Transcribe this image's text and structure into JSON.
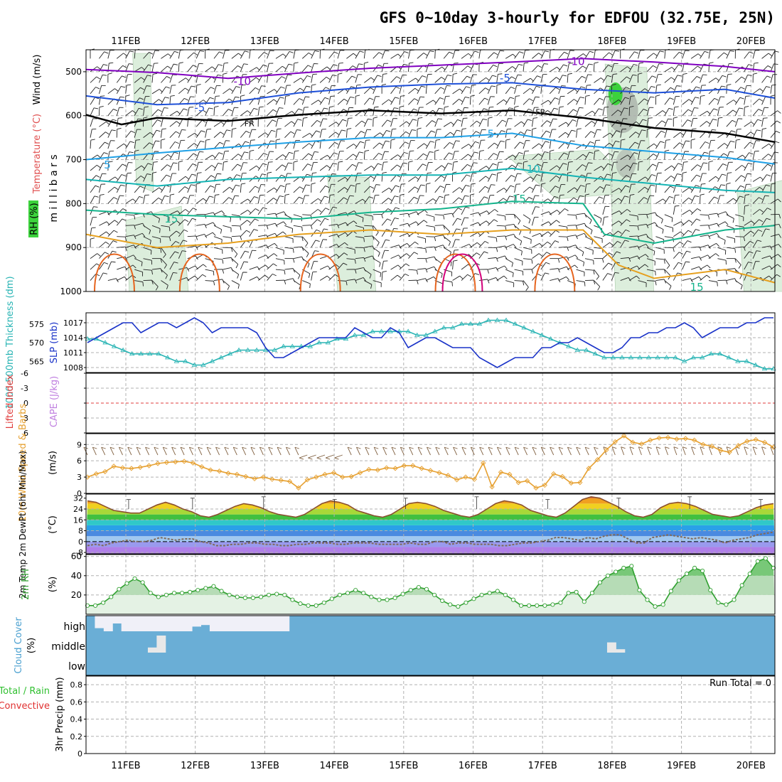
{
  "title": "GFS 0~10day 3-hourly for EDFOU (32.75E, 25N)",
  "dates": [
    "11FEB",
    "12FEB",
    "13FEB",
    "14FEB",
    "15FEB",
    "16FEB",
    "17FEB",
    "18FEB",
    "19FEB",
    "20FEB"
  ],
  "colors": {
    "wind_barb": "#222222",
    "isotherm_cold": "#8000c0",
    "isotherm_minus5": "#1e50d8",
    "freezing": "#000000",
    "isotherm_5": "#1ea0e6",
    "isotherm_10": "#14b4b4",
    "isotherm_15": "#14b48c",
    "isotherm_20": "#e6a01e",
    "isotherm_25": "#e6641e",
    "isotherm_30": "#d2007a",
    "rh_fill": "#d6ecd6",
    "rh_dark": "#808080",
    "rh_green": "#3cd23c",
    "slp": "#1932c8",
    "thickness": "#28b4b4",
    "lifted_index": "#e03c3c",
    "cape": "#c080e0",
    "wind_speed": "#e6a030",
    "wind_barbs_10m": "#806040",
    "temp_fill": "#f07828",
    "dewpoint": "#806a5a",
    "rh_line": "#30a030",
    "cloud_clear": "#6aaed6",
    "cloud_cover": "#f0f0f8"
  },
  "panels": {
    "upper": {
      "axis_title": "m i l l i b a r s",
      "legend_wind": "Wind (m/s)",
      "legend_temp": "Temperature (°C)",
      "legend_rh": "RH (%)"
    },
    "slp": {
      "axis_left": "1000-500mb Thickness (dm)",
      "axis_right": "SLP (mb)"
    },
    "stability": {
      "axis_left": "Lifted Index",
      "axis_right": "CAPE (J/kg)"
    },
    "wind10": {
      "axis_left": "10m Wind Speed & Barbs",
      "units": "(m/s)"
    },
    "temp2m": {
      "axis_left": "2m Temp 2m DewPt (6hr Min/Max)",
      "units": "(°C)"
    },
    "rh2m": {
      "axis_left": "2m RH",
      "units": "(%)"
    },
    "cloud": {
      "axis_left": "Cloud Cover",
      "units": "(%)",
      "levels": [
        "high",
        "middle",
        "low"
      ]
    },
    "precip": {
      "axis_left_a": "Total / Rain",
      "axis_left_b": "Convective",
      "axis_right": "3hr Precip (mm)",
      "run_total": "Run Total = 0"
    }
  },
  "chart_data": [
    {
      "type": "heatmap",
      "name": "upper_air",
      "x_axis": "date (3-hourly)",
      "y_axis": "pressure (mb)",
      "ylim": [
        450,
        1000
      ],
      "yticks": [
        500,
        600,
        700,
        800,
        900,
        1000
      ],
      "ytick_labels": [
        "500",
        "600",
        "700",
        "800",
        "900",
        "1000"
      ],
      "contour_labels": [
        {
          "text": "-10",
          "t": 6.9,
          "p": 477
        },
        {
          "text": "-10",
          "t": 2.2,
          "p": 522
        },
        {
          "text": "-5",
          "t": 5.9,
          "p": 515
        },
        {
          "text": "-5",
          "t": 1.6,
          "p": 582
        },
        {
          "text": "FR",
          "t": 2.3,
          "p": 616
        },
        {
          "text": "FR",
          "t": 6.4,
          "p": 590
        },
        {
          "text": "5",
          "t": 0.3,
          "p": 712
        },
        {
          "text": "5",
          "t": 5.7,
          "p": 642
        },
        {
          "text": "10",
          "t": 6.3,
          "p": 722
        },
        {
          "text": "15",
          "t": 6.1,
          "p": 790
        },
        {
          "text": "15",
          "t": 1.2,
          "p": 835
        },
        {
          "text": "15",
          "t": 8.6,
          "p": 990
        }
      ],
      "isotherms": [
        {
          "label": "-10",
          "t": [
            0,
            1,
            2,
            3,
            4,
            5,
            6,
            7,
            8,
            9,
            9.7
          ],
          "p": [
            495,
            502,
            515,
            503,
            492,
            485,
            478,
            470,
            478,
            488,
            500
          ]
        },
        {
          "label": "-5",
          "t": [
            0,
            1,
            2,
            3,
            4,
            5,
            6,
            7,
            8,
            9,
            9.7
          ],
          "p": [
            555,
            575,
            570,
            548,
            535,
            528,
            525,
            540,
            548,
            540,
            560
          ]
        },
        {
          "label": "FR",
          "t": [
            0,
            0.5,
            1,
            2,
            3,
            4,
            5,
            6,
            7,
            8,
            9,
            9.7
          ],
          "p": [
            598,
            620,
            605,
            612,
            598,
            588,
            595,
            588,
            605,
            628,
            640,
            660
          ]
        },
        {
          "label": "5",
          "t": [
            0,
            1,
            2,
            3,
            4,
            5,
            6,
            7,
            8,
            9,
            9.7
          ],
          "p": [
            700,
            685,
            672,
            660,
            650,
            650,
            640,
            668,
            682,
            695,
            710
          ]
        },
        {
          "label": "10",
          "t": [
            0,
            1,
            2,
            3,
            4,
            5,
            6,
            7,
            8,
            9,
            9.7
          ],
          "p": [
            745,
            760,
            745,
            740,
            735,
            735,
            720,
            740,
            755,
            770,
            775
          ]
        },
        {
          "label": "15",
          "t": [
            0,
            1,
            2,
            3,
            4,
            5,
            6,
            7,
            7.3,
            8,
            9,
            9.7
          ],
          "p": [
            815,
            825,
            830,
            835,
            820,
            812,
            795,
            800,
            870,
            890,
            860,
            850
          ]
        },
        {
          "label": "20",
          "t": [
            0,
            1,
            2,
            3,
            4,
            5,
            6,
            7,
            7.5,
            8,
            9,
            9.7
          ],
          "p": [
            870,
            900,
            890,
            870,
            860,
            870,
            860,
            860,
            940,
            970,
            950,
            980
          ]
        }
      ]
    },
    {
      "type": "line",
      "name": "slp_thickness",
      "x_axis": "date",
      "series": [
        {
          "name": "SLP (mb)",
          "ylim": [
            1007,
            1019
          ],
          "yticks": [
            1008,
            1011,
            1014,
            1017
          ],
          "values": [
            1013,
            1014,
            1015,
            1016,
            1017,
            1017,
            1015,
            1016,
            1017,
            1017,
            1016,
            1017,
            1018,
            1017,
            1015,
            1016,
            1016,
            1016,
            1016,
            1015,
            1012,
            1010,
            1010,
            1011,
            1012,
            1013,
            1014,
            1014,
            1014,
            1014,
            1016,
            1015,
            1014,
            1014,
            1016,
            1015,
            1012,
            1013,
            1014,
            1014,
            1013,
            1012,
            1012,
            1012,
            1010,
            1009,
            1008,
            1009,
            1010,
            1010,
            1010,
            1012,
            1012,
            1013,
            1013,
            1014,
            1013,
            1012,
            1011,
            1011,
            1012,
            1014,
            1014,
            1015,
            1015,
            1016,
            1016,
            1017,
            1016,
            1014,
            1015,
            1016,
            1016,
            1016,
            1017,
            1017,
            1018,
            1018
          ]
        },
        {
          "name": "1000-500mb Thickness (dm)",
          "ylim": [
            562,
            578
          ],
          "yticks": [
            565,
            570,
            575
          ],
          "values": [
            571,
            571,
            570,
            569,
            568,
            567,
            567,
            567,
            567,
            566,
            565,
            565,
            564,
            564,
            565,
            566,
            567,
            568,
            568,
            568,
            568,
            568,
            569,
            569,
            569,
            569,
            570,
            570,
            571,
            571,
            572,
            572,
            573,
            573,
            573,
            573,
            573,
            572,
            572,
            573,
            574,
            574,
            575,
            575,
            575,
            576,
            576,
            576,
            575,
            574,
            573,
            572,
            571,
            570,
            569,
            568,
            568,
            567,
            566,
            566,
            566,
            566,
            566,
            566,
            566,
            566,
            566,
            565,
            566,
            566,
            567,
            567,
            566,
            565,
            565,
            564,
            563,
            563
          ]
        }
      ]
    },
    {
      "type": "line",
      "name": "lifted_index_cape",
      "x_axis": "date",
      "ylim": [
        6,
        -6
      ],
      "yticks": [
        -6,
        -3,
        0,
        3,
        6
      ],
      "ytick_labels": [
        "-6",
        "-3",
        "0",
        "3",
        "6"
      ],
      "series": [
        {
          "name": "Lifted Index",
          "values": []
        },
        {
          "name": "CAPE (J/kg)",
          "values": []
        }
      ]
    },
    {
      "type": "line",
      "name": "wind_10m",
      "x_axis": "date",
      "ylim": [
        0,
        11
      ],
      "yticks": [
        0,
        3,
        6,
        9
      ],
      "series": [
        {
          "name": "10m Wind Speed (m/s)",
          "values": [
            3.0,
            3.6,
            4.0,
            5.0,
            4.7,
            4.6,
            4.8,
            5.1,
            5.5,
            5.7,
            5.8,
            5.9,
            5.6,
            4.9,
            4.3,
            4.1,
            3.7,
            3.5,
            3.1,
            2.7,
            3.0,
            2.6,
            2.4,
            2.2,
            1.0,
            2.5,
            3.0,
            3.5,
            3.8,
            3.0,
            3.1,
            3.8,
            4.4,
            4.3,
            4.7,
            4.6,
            5.1,
            5.1,
            4.6,
            4.2,
            3.8,
            3.3,
            2.5,
            3.0,
            2.6,
            5.6,
            1.2,
            3.9,
            3.5,
            2.0,
            2.3,
            1.0,
            1.5,
            3.6,
            3.1,
            1.9,
            2.0,
            4.6,
            6.2,
            8.0,
            9.5,
            10.6,
            9.4,
            9.1,
            9.8,
            10.2,
            10.3,
            10.0,
            10.1,
            9.8,
            9.0,
            8.7,
            7.9,
            7.6,
            8.8,
            9.6,
            9.9,
            9.4,
            8.5
          ]
        }
      ]
    },
    {
      "type": "area",
      "name": "temp_2m",
      "x_axis": "date",
      "ylim": [
        -9,
        35
      ],
      "yticks": [
        -8,
        0,
        8,
        16,
        24,
        32
      ],
      "series": [
        {
          "name": "2m Temp",
          "values": [
            30,
            29,
            26,
            23,
            22,
            21,
            21,
            24,
            27,
            29,
            27,
            24,
            22,
            19,
            18,
            20,
            23,
            26,
            28,
            27,
            25,
            22,
            20,
            19,
            18,
            20,
            24,
            28,
            30,
            29,
            27,
            23,
            21,
            19,
            18,
            20,
            24,
            28,
            29,
            28,
            26,
            23,
            21,
            19,
            18,
            20,
            24,
            28,
            30,
            29,
            27,
            23,
            21,
            19,
            18,
            21,
            26,
            31,
            33,
            32,
            29,
            26,
            22,
            19,
            18,
            20,
            25,
            28,
            29,
            28,
            26,
            23,
            20,
            19,
            18,
            19,
            22,
            25,
            27,
            28
          ]
        },
        {
          "name": "2m DewPt",
          "values": [
            -3,
            -2,
            -3,
            -1,
            0,
            1,
            0,
            0,
            1,
            3,
            2,
            1,
            2,
            2,
            0,
            -1,
            -3,
            -3,
            -2,
            -2,
            -1,
            -1,
            -2,
            -2,
            -3,
            -3,
            -2,
            -2,
            -1,
            -1,
            -1,
            -2,
            -2,
            -1,
            -1,
            -1,
            -2,
            -2,
            -2,
            -2,
            -1,
            -2,
            -2,
            0,
            0,
            -2,
            -1,
            -1,
            -2,
            -2,
            -2,
            -3,
            -3,
            -2,
            -1,
            -1,
            0,
            1,
            3,
            3,
            2,
            1,
            3,
            2,
            4,
            5,
            5,
            2,
            -1,
            -1,
            3,
            4,
            5,
            4,
            3,
            2,
            3,
            2,
            1,
            -1,
            1,
            2,
            3,
            5,
            6,
            7
          ]
        }
      ]
    },
    {
      "type": "area",
      "name": "rh_2m",
      "x_axis": "date",
      "ylim": [
        0,
        62
      ],
      "yticks": [
        20,
        40,
        60
      ],
      "series": [
        {
          "name": "2m RH (%)",
          "values": [
            9,
            9,
            12,
            18,
            26,
            32,
            37,
            33,
            22,
            18,
            20,
            22,
            22,
            23,
            25,
            27,
            29,
            24,
            20,
            18,
            17,
            17,
            18,
            20,
            21,
            20,
            15,
            11,
            9,
            9,
            12,
            16,
            20,
            22,
            25,
            22,
            18,
            15,
            15,
            17,
            21,
            25,
            28,
            26,
            20,
            14,
            10,
            8,
            12,
            16,
            20,
            22,
            24,
            20,
            15,
            9,
            9,
            9,
            9,
            10,
            12,
            22,
            23,
            13,
            22,
            33,
            40,
            44,
            48,
            50,
            25,
            15,
            8,
            10,
            24,
            35,
            42,
            48,
            45,
            25,
            12,
            10,
            15,
            30,
            42,
            55,
            58,
            48
          ]
        }
      ]
    },
    {
      "type": "heatmap",
      "name": "cloud_cover",
      "rows": [
        "high",
        "middle",
        "low"
      ],
      "x_axis": "date",
      "high": [
        0,
        80,
        100,
        50,
        100,
        100,
        100,
        100,
        100,
        100,
        100,
        100,
        70,
        60,
        100,
        100,
        100,
        100,
        100,
        100,
        100,
        100,
        100,
        0,
        0,
        0,
        0,
        0,
        0,
        0,
        0,
        0,
        0,
        0,
        0,
        0,
        0,
        0,
        0,
        0,
        0,
        0,
        0,
        0,
        0,
        0,
        0,
        0,
        0,
        0,
        0,
        0,
        0,
        0,
        0,
        0,
        0,
        0,
        0,
        0,
        0,
        0,
        0,
        0,
        0,
        0,
        0,
        0,
        0,
        0,
        0,
        0,
        0,
        0,
        0,
        0,
        0,
        0
      ],
      "middle": [
        0,
        0,
        0,
        0,
        0,
        0,
        0,
        30,
        100,
        0,
        0,
        0,
        0,
        0,
        0,
        0,
        0,
        0,
        0,
        0,
        0,
        0,
        0,
        0,
        0,
        0,
        0,
        0,
        0,
        0,
        0,
        0,
        0,
        0,
        0,
        0,
        0,
        0,
        0,
        0,
        0,
        0,
        0,
        0,
        0,
        0,
        0,
        0,
        0,
        0,
        0,
        0,
        0,
        0,
        0,
        0,
        0,
        0,
        0,
        60,
        20,
        0,
        0,
        0,
        0,
        0,
        0,
        0,
        0,
        0,
        0,
        0,
        0,
        0,
        0,
        0,
        0,
        0
      ],
      "low": []
    },
    {
      "type": "bar",
      "name": "precip_3hr",
      "x_axis": "date",
      "ylim": [
        0,
        0.9
      ],
      "yticks": [
        0,
        0.2,
        0.4,
        0.6,
        0.8
      ],
      "ytick_labels": [
        "0",
        "0.2",
        "0.4",
        "0.6",
        "0.8"
      ],
      "values": []
    }
  ]
}
